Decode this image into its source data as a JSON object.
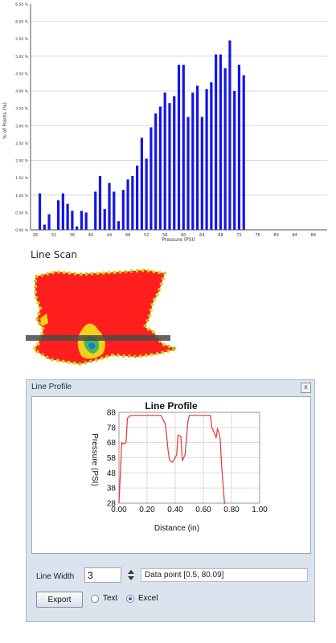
{
  "histogram": {
    "x_axis_label": "Pressure (PSI)",
    "y_axis_label": "% of Points (%)",
    "x_tick_labels": [
      "28",
      "32",
      "36",
      "40",
      "44",
      "48",
      "52",
      "56",
      "60",
      "64",
      "68",
      "72",
      "76",
      "80",
      "84",
      "88"
    ],
    "y_tick_labels": [
      "0.00 %",
      "0.50 %",
      "1.00 %",
      "1.50 %",
      "2.00 %",
      "2.50 %",
      "3.00 %",
      "3.50 %",
      "4.00 %",
      "4.50 %",
      "5.00 %",
      "5.50 %",
      "6.00 %",
      "6.50 %"
    ],
    "bar_color": "#1515e6"
  },
  "line_scan": {
    "title": "Line Scan"
  },
  "line_profile_panel": {
    "window_title": "Line Profile",
    "close_label": "x",
    "line_width_label": "Line Width",
    "line_width_value": "3",
    "data_point_text": "Data point [0.5, 80.09]",
    "export_label": "Export",
    "radio_text_label": "Text",
    "radio_excel_label": "Excel",
    "selected_format": "Excel"
  },
  "chart_data": [
    {
      "type": "bar",
      "x": [
        29,
        30,
        31,
        32,
        33,
        34,
        35,
        36,
        37,
        38,
        39,
        40,
        41,
        42,
        43,
        44,
        45,
        46,
        47,
        48,
        49,
        50,
        51,
        52,
        53,
        54,
        55,
        56,
        57,
        58,
        59,
        60,
        61,
        62,
        63,
        64,
        65,
        66,
        67,
        68,
        69,
        70,
        71,
        72,
        73
      ],
      "values": [
        1.05,
        0.15,
        0.45,
        0.0,
        0.85,
        1.05,
        0.75,
        0.55,
        0.1,
        0.55,
        0.5,
        0.0,
        1.1,
        1.55,
        0.6,
        1.35,
        1.1,
        0.25,
        1.15,
        1.45,
        1.55,
        1.85,
        2.65,
        2.05,
        2.95,
        3.35,
        3.55,
        3.95,
        3.65,
        3.85,
        4.75,
        4.75,
        3.25,
        3.95,
        4.15,
        3.25,
        4.05,
        4.25,
        5.05,
        5.05,
        4.65,
        5.45,
        4.0,
        4.75,
        4.45
      ],
      "x_tick_labels": [
        "28",
        "32",
        "36",
        "40",
        "44",
        "48",
        "52",
        "56",
        "60",
        "64",
        "68",
        "72",
        "76",
        "80",
        "84",
        "88"
      ],
      "xlabel": "Pressure (PSI)",
      "ylabel": "% of Points (%)",
      "xlim": [
        27,
        91
      ],
      "ylim": [
        0,
        6.5
      ],
      "grid": true
    },
    {
      "type": "line",
      "title": "Line Profile",
      "xlabel": "Distance (in)",
      "ylabel": "Pressure (PSI)",
      "x_ticks": [
        "0.00",
        "0.20",
        "0.40",
        "0.60",
        "0.80",
        "1.00"
      ],
      "y_ticks": [
        "28",
        "38",
        "48",
        "58",
        "68",
        "78",
        "88"
      ],
      "xlim": [
        0,
        1.0
      ],
      "ylim": [
        28,
        88
      ],
      "series": [
        {
          "color": "#e53333",
          "x": [
            0.0,
            0.02,
            0.03,
            0.05,
            0.06,
            0.08,
            0.1,
            0.2,
            0.3,
            0.33,
            0.35,
            0.36,
            0.38,
            0.4,
            0.41,
            0.42,
            0.44,
            0.45,
            0.47,
            0.49,
            0.5,
            0.52,
            0.6,
            0.65,
            0.66,
            0.68,
            0.69,
            0.7,
            0.71,
            0.72,
            0.73,
            0.75,
            0.76
          ],
          "y": [
            28,
            68,
            67,
            68,
            84,
            86,
            86,
            86,
            86,
            80,
            62,
            56,
            55,
            58,
            60,
            73,
            72,
            56,
            60,
            82,
            86,
            86,
            86,
            86,
            78,
            74,
            71,
            77,
            75,
            70,
            52,
            28,
            28
          ]
        }
      ]
    }
  ]
}
